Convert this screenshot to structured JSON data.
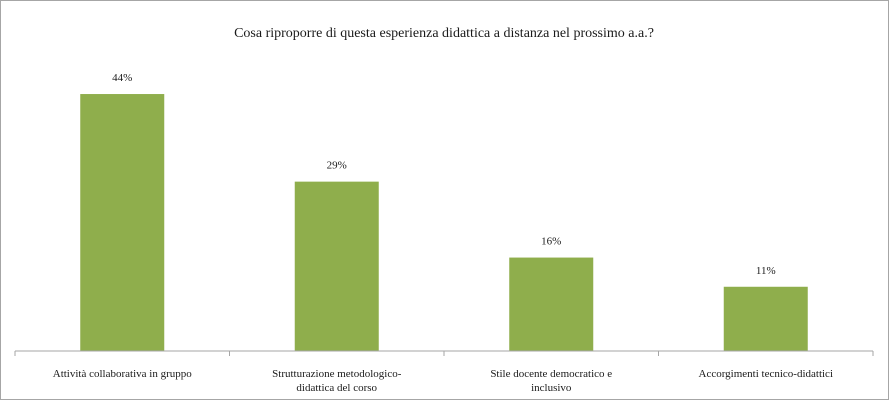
{
  "chart_data": {
    "type": "bar",
    "title": "Cosa riproporre di questa esperienza didattica a distanza nel prossimo a.a.?",
    "categories": [
      [
        "Attività collaborativa in gruppo"
      ],
      [
        "Strutturazione metodologico-",
        "didattica del corso"
      ],
      [
        "Stile docente democratico e",
        "inclusivo"
      ],
      [
        "Accorgimenti tecnico-didattici"
      ]
    ],
    "values": [
      44,
      29,
      16,
      11
    ],
    "data_labels": [
      "44%",
      "29%",
      "16%",
      "11%"
    ],
    "unit": "%",
    "ylim": [
      0,
      50
    ],
    "grid": false,
    "legend": "none",
    "bar_color": "#8fae4c",
    "axis_color": "#a6a6a6"
  }
}
